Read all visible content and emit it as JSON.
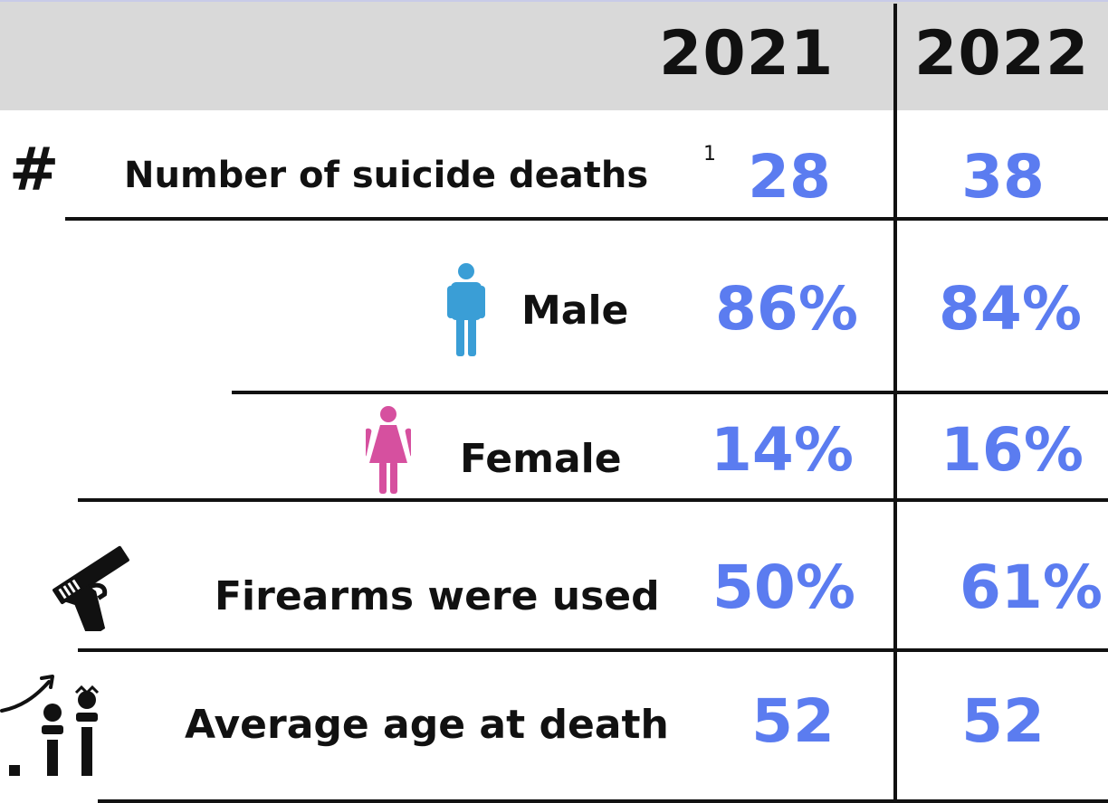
{
  "header": {
    "year_1": "2021",
    "year_2": "2022"
  },
  "rows": {
    "deaths": {
      "icon_glyph": "#",
      "label": "Number of suicide deaths",
      "footnote": "1",
      "v2021": "28",
      "v2022": "38"
    },
    "male": {
      "icon": "male-person-icon",
      "label": "Male",
      "v2021": "86%",
      "v2022": "84%"
    },
    "female": {
      "icon": "female-person-icon",
      "label": "Female",
      "v2021": "14%",
      "v2022": "16%"
    },
    "firearms": {
      "icon": "handgun-icon",
      "label": "Firearms were used",
      "v2021": "50%",
      "v2022": "61%"
    },
    "age": {
      "icon": "age-growth-icon",
      "label": "Average age at death",
      "v2021": "52",
      "v2022": "52"
    }
  },
  "colors": {
    "value": "#5b7cf0",
    "male_icon": "#3a9ed6",
    "female_icon": "#d6509f",
    "header_bg": "#d9d9d9",
    "text": "#111111"
  }
}
